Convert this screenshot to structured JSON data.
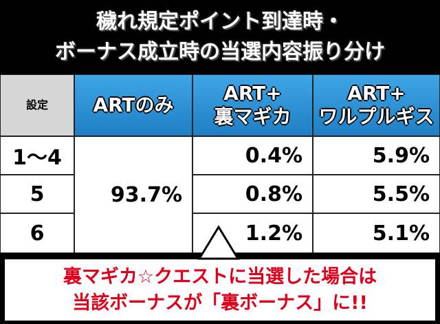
{
  "title": {
    "lines": [
      "穢れ規定ポイント到達時・",
      "ボーナス成立時の当選内容振り分け"
    ]
  },
  "table": {
    "header": [
      [
        "設定"
      ],
      [
        "ARTのみ"
      ],
      [
        "ART+",
        "裏マギカ"
      ],
      [
        "ART+",
        "ワルプルギス"
      ]
    ],
    "art_only": "93.7%",
    "rows": [
      {
        "setting": "1〜4",
        "magica": "0.4%",
        "walpurgis": "5.9%"
      },
      {
        "setting": "5",
        "magica": "0.8%",
        "walpurgis": "5.5%"
      },
      {
        "setting": "6",
        "magica": "1.2%",
        "walpurgis": "5.1%"
      }
    ]
  },
  "note": {
    "lines": [
      "裏マギカ☆クエストに当選した場合は",
      "当該ボーナスが「裏ボーナス」に!!"
    ]
  }
}
